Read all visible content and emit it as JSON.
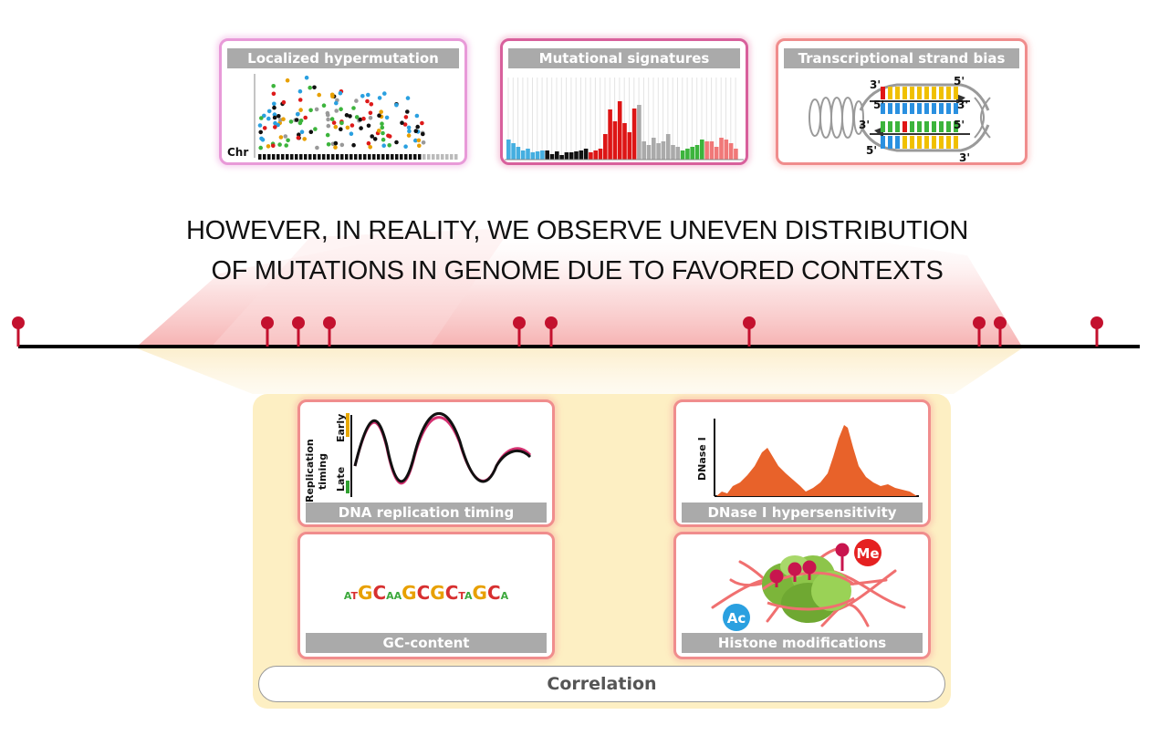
{
  "heading": {
    "line1": "HOWEVER, IN REALITY, WE OBSERVE UNEVEN DISTRIBUTION",
    "line2": "OF MUTATIONS IN GENOME DUE TO FAVORED CONTEXTS"
  },
  "top_cards": [
    {
      "title": "Localized hypermutation",
      "axis_label": "Chr"
    },
    {
      "title": "Mutational signatures"
    },
    {
      "title": "Transcriptional strand bias",
      "labels": {
        "a": "3'",
        "b": "5'",
        "c": "5'",
        "d": "3'",
        "e": "3'",
        "f": "5'",
        "g": "5'",
        "h": "3'"
      }
    }
  ],
  "bottom_cards": {
    "replication": {
      "title": "DNA replication timing",
      "ylabel_1": "Replication",
      "ylabel_2": "timing",
      "early": "Early",
      "late": "Late"
    },
    "dnase": {
      "title": "DNase I hypersensitivity",
      "ylabel": "DNase I"
    },
    "gc": {
      "title": "GC-content",
      "sequence": [
        {
          "t": "A",
          "c": "#3ca83c",
          "s": "small"
        },
        {
          "t": "T",
          "c": "#d73030",
          "s": "small"
        },
        {
          "t": "G",
          "c": "#e8a000",
          "s": "big"
        },
        {
          "t": "C",
          "c": "#d73030",
          "s": "big"
        },
        {
          "t": "A",
          "c": "#3ca83c",
          "s": "small"
        },
        {
          "t": "A",
          "c": "#3ca83c",
          "s": "small"
        },
        {
          "t": "G",
          "c": "#e8a000",
          "s": "big"
        },
        {
          "t": "C",
          "c": "#d73030",
          "s": "big"
        },
        {
          "t": "G",
          "c": "#e8a000",
          "s": "big"
        },
        {
          "t": "C",
          "c": "#d73030",
          "s": "big"
        },
        {
          "t": "T",
          "c": "#d73030",
          "s": "small"
        },
        {
          "t": "A",
          "c": "#3ca83c",
          "s": "small"
        },
        {
          "t": "G",
          "c": "#e8a000",
          "s": "big"
        },
        {
          "t": "C",
          "c": "#d73030",
          "s": "big"
        },
        {
          "t": "A",
          "c": "#3ca83c",
          "s": "small"
        }
      ]
    },
    "histone": {
      "title": "Histone modifications",
      "me": "Me",
      "ac": "Ac"
    }
  },
  "correlation_label": "Correlation",
  "colors": {
    "mutation_pin": "#c3112e",
    "genome_line": "#000000",
    "panel_bg": "#fdefc3",
    "card_border": "#f08d8d",
    "title_bar": "#aaaaaa"
  },
  "signature_colors": [
    "#44aee0",
    "#111111",
    "#dd1515",
    "#aaaaaa",
    "#3cb43c",
    "#f07878"
  ]
}
